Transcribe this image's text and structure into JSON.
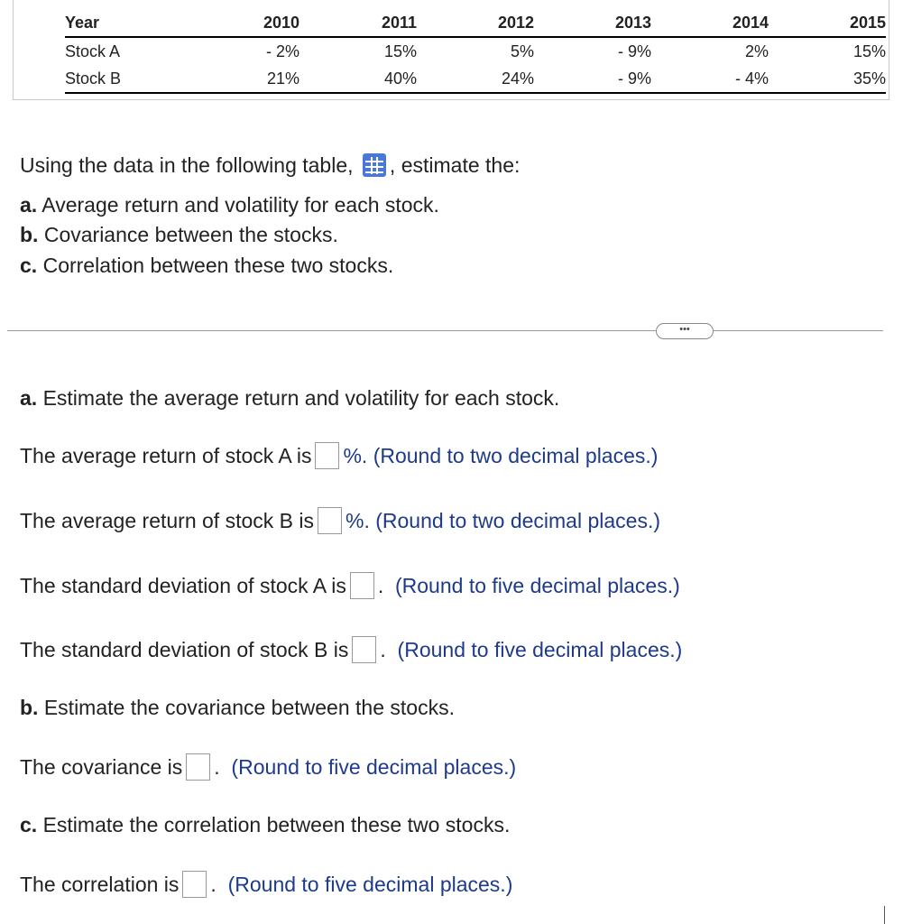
{
  "table": {
    "headers": [
      "Year",
      "2010",
      "2011",
      "2012",
      "2013",
      "2014",
      "2015"
    ],
    "rows": [
      [
        "Stock A",
        "- 2%",
        "15%",
        "5%",
        "- 9%",
        "2%",
        "15%"
      ],
      [
        "Stock B",
        "21%",
        "40%",
        "24%",
        "- 9%",
        "- 4%",
        "35%"
      ]
    ]
  },
  "question": {
    "intro_before": "Using the data in the following table,",
    "intro_after": ", estimate the:",
    "items": [
      {
        "letter": "a.",
        "text": " Average return and volatility for each stock."
      },
      {
        "letter": "b.",
        "text": " Covariance between the stocks."
      },
      {
        "letter": "c.",
        "text": " Correlation between these two stocks."
      }
    ]
  },
  "more_label": "•••",
  "parts": {
    "a_heading": {
      "letter": "a.",
      "text": " Estimate the average return and volatility for each stock."
    },
    "avg_a": {
      "before": "The average return of stock A is",
      "after": "%.",
      "hint": "(Round to two decimal places.)",
      "value": ""
    },
    "avg_b": {
      "before": "The average return of stock B is",
      "after": "%.",
      "hint": "(Round to two decimal places.)",
      "value": ""
    },
    "sd_a": {
      "before": "The standard deviation of stock A is",
      "after": ".",
      "hint": "(Round to five decimal places.)",
      "value": ""
    },
    "sd_b": {
      "before": "The standard deviation of stock B is",
      "after": ".",
      "hint": "(Round to five decimal places.)",
      "value": ""
    },
    "b_heading": {
      "letter": "b.",
      "text": " Estimate the covariance between the stocks."
    },
    "cov": {
      "before": "The covariance is",
      "after": ".",
      "hint": "(Round to five decimal places.)",
      "value": ""
    },
    "c_heading": {
      "letter": "c.",
      "text": " Estimate the correlation between these two stocks."
    },
    "corr": {
      "before": "The correlation is",
      "after": ".",
      "hint": "(Round to five decimal places.)",
      "value": ""
    }
  }
}
